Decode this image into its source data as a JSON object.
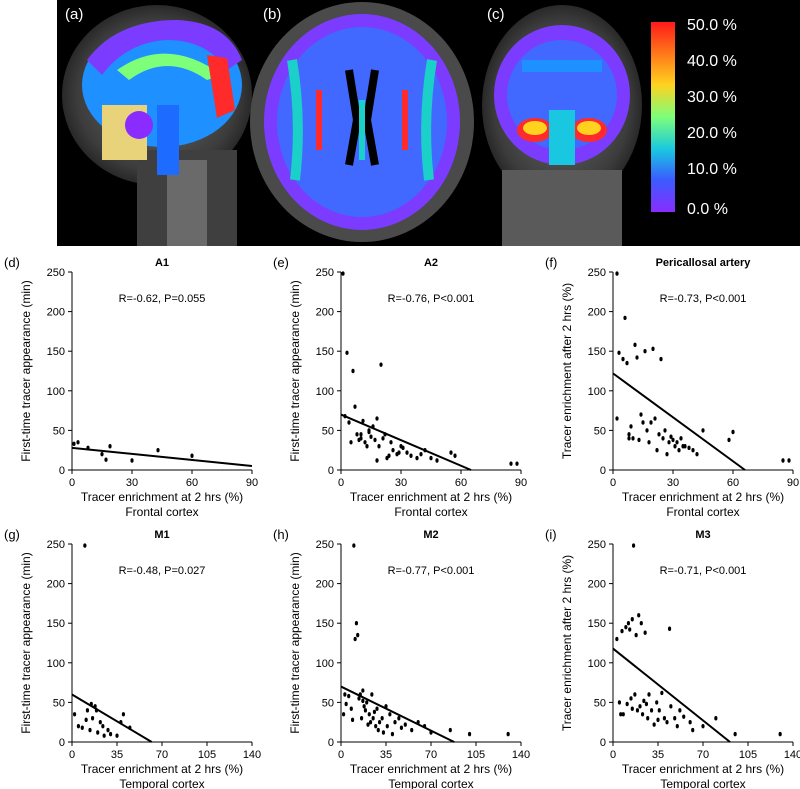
{
  "figure": {
    "mri_panels": [
      {
        "letter": "(a)"
      },
      {
        "letter": "(b)"
      },
      {
        "letter": "(c)"
      }
    ],
    "colorbar": {
      "ticks": [
        "50.0 %",
        "40.0 %",
        "30.0 %",
        "20.0 %",
        "10.0 %",
        "0.0 %"
      ],
      "colors": [
        "#ff1a1a",
        "#ff7a1a",
        "#ffd21f",
        "#7dff7a",
        "#19c8e0",
        "#3a5cff",
        "#8a2cff"
      ]
    }
  },
  "chart_data": [
    {
      "id": "d",
      "letter": "(d)",
      "type": "scatter",
      "title": "A1",
      "annotation": "R=-0.62, P=0.055",
      "ylabel": "First-time tracer appearance (min)",
      "xlabel": "Tracer enrichment at 2 hrs (%)",
      "xsublabel": "Frontal cortex",
      "xlim": [
        0,
        90
      ],
      "ylim": [
        0,
        250
      ],
      "xticks": [
        0,
        30,
        60,
        90
      ],
      "yticks": [
        0,
        50,
        100,
        150,
        200,
        250
      ],
      "x": [
        1,
        3,
        8,
        15,
        17,
        19,
        30,
        43,
        60
      ],
      "y": [
        33,
        35,
        28,
        20,
        13,
        30,
        12,
        25,
        18
      ],
      "fit": [
        [
          0,
          28
        ],
        [
          90,
          5
        ]
      ]
    },
    {
      "id": "e",
      "letter": "(e)",
      "type": "scatter",
      "title": "A2",
      "annotation": "R=-0.76, P<0.001",
      "ylabel": "First-time tracer appearance (min)",
      "xlabel": "Tracer enrichment at 2 hrs (%)",
      "xsublabel": "Frontal cortex",
      "xlim": [
        0,
        90
      ],
      "ylim": [
        0,
        250
      ],
      "xticks": [
        0,
        30,
        60,
        90
      ],
      "yticks": [
        0,
        50,
        100,
        150,
        200,
        250
      ],
      "x": [
        1,
        3,
        4,
        6,
        7,
        8,
        9,
        10,
        11,
        12,
        13,
        14,
        14,
        15,
        16,
        17,
        18,
        18,
        19,
        20,
        21,
        22,
        23,
        24,
        25,
        26,
        28,
        29,
        30,
        31,
        33,
        35,
        38,
        40,
        42,
        45,
        48,
        55,
        57,
        85,
        88,
        2,
        5,
        10
      ],
      "y": [
        248,
        148,
        60,
        125,
        80,
        45,
        38,
        40,
        62,
        35,
        30,
        50,
        48,
        42,
        55,
        38,
        12,
        65,
        30,
        133,
        40,
        45,
        15,
        18,
        35,
        25,
        20,
        22,
        30,
        28,
        22,
        18,
        15,
        20,
        25,
        15,
        12,
        22,
        18,
        8,
        8,
        68,
        35,
        45
      ],
      "fit": [
        [
          0,
          70
        ],
        [
          65,
          0
        ]
      ]
    },
    {
      "id": "f",
      "letter": "(f)",
      "type": "scatter",
      "title": "Pericallosal artery",
      "annotation": "R=-0.73, P<0.001",
      "ylabel": "Tracer enrichment after 2 hrs (%)",
      "xlabel": "Tracer enrichment at 2 hrs (%)",
      "xsublabel": "Frontal cortex",
      "xlim": [
        0,
        90
      ],
      "ylim": [
        0,
        250
      ],
      "xticks": [
        0,
        30,
        60,
        90
      ],
      "yticks": [
        0,
        50,
        100,
        150,
        200,
        250
      ],
      "x": [
        2,
        3,
        5,
        6,
        7,
        8,
        9,
        10,
        11,
        12,
        13,
        14,
        15,
        16,
        17,
        18,
        19,
        20,
        21,
        22,
        23,
        24,
        25,
        26,
        27,
        28,
        29,
        30,
        31,
        32,
        33,
        34,
        35,
        36,
        38,
        40,
        42,
        45,
        58,
        60,
        85,
        88,
        2,
        8
      ],
      "y": [
        248,
        148,
        140,
        192,
        135,
        45,
        55,
        40,
        158,
        142,
        38,
        70,
        60,
        150,
        50,
        35,
        60,
        153,
        65,
        25,
        45,
        140,
        40,
        50,
        20,
        35,
        42,
        38,
        30,
        35,
        25,
        40,
        30,
        30,
        28,
        25,
        20,
        50,
        38,
        48,
        12,
        12,
        65,
        40
      ],
      "fit": [
        [
          0,
          122
        ],
        [
          66,
          0
        ]
      ]
    },
    {
      "id": "g",
      "letter": "(g)",
      "type": "scatter",
      "title": "M1",
      "annotation": "R=-0.48, P=0.027",
      "ylabel": "First-time tracer appearance (min)",
      "xlabel": "Tracer enrichment at 2 hrs (%)",
      "xsublabel": "Temporal cortex",
      "xlim": [
        0,
        140
      ],
      "ylim": [
        0,
        250
      ],
      "xticks": [
        0,
        35,
        70,
        105,
        140
      ],
      "yticks": [
        0,
        50,
        100,
        150,
        200,
        250
      ],
      "x": [
        2,
        5,
        8,
        10,
        12,
        15,
        16,
        18,
        20,
        22,
        24,
        25,
        28,
        30,
        35,
        38,
        40,
        45,
        11,
        14,
        19
      ],
      "y": [
        35,
        20,
        18,
        248,
        40,
        48,
        30,
        45,
        12,
        25,
        20,
        8,
        15,
        10,
        8,
        25,
        35,
        18,
        28,
        15,
        40
      ],
      "fit": [
        [
          0,
          60
        ],
        [
          62,
          0
        ]
      ]
    },
    {
      "id": "h",
      "letter": "(h)",
      "type": "scatter",
      "title": "M2",
      "annotation": "R=-0.77, P<0.001",
      "ylabel": "First-time tracer appearance (min)",
      "xlabel": "Tracer enrichment at 2 hrs (%)",
      "xsublabel": "Temporal cortex",
      "xlim": [
        0,
        140
      ],
      "ylim": [
        0,
        250
      ],
      "xticks": [
        0,
        35,
        70,
        105,
        140
      ],
      "yticks": [
        0,
        50,
        100,
        150,
        200,
        250
      ],
      "x": [
        2,
        4,
        6,
        8,
        10,
        11,
        12,
        13,
        14,
        15,
        16,
        17,
        18,
        19,
        20,
        21,
        22,
        23,
        24,
        25,
        26,
        27,
        28,
        29,
        30,
        32,
        33,
        35,
        36,
        38,
        40,
        42,
        45,
        47,
        50,
        55,
        60,
        65,
        70,
        85,
        100,
        130,
        3,
        9,
        17
      ],
      "y": [
        35,
        48,
        58,
        42,
        248,
        130,
        150,
        135,
        55,
        60,
        30,
        65,
        45,
        40,
        50,
        22,
        35,
        25,
        60,
        30,
        38,
        20,
        42,
        15,
        25,
        30,
        12,
        45,
        20,
        35,
        10,
        25,
        30,
        18,
        22,
        15,
        25,
        20,
        12,
        15,
        10,
        10,
        60,
        28,
        52
      ],
      "fit": [
        [
          0,
          70
        ],
        [
          88,
          0
        ]
      ]
    },
    {
      "id": "i",
      "letter": "(i)",
      "type": "scatter",
      "title": "M3",
      "annotation": "R=-0.71, P<0.001",
      "ylabel": "Tracer enrichment after 2 hrs (%)",
      "xlabel": "Tracer enrichment at 2 hrs (%)",
      "xsublabel": "Temporal cortex",
      "xlim": [
        0,
        140
      ],
      "ylim": [
        0,
        250
      ],
      "xticks": [
        0,
        35,
        70,
        105,
        140
      ],
      "yticks": [
        0,
        50,
        100,
        150,
        200,
        250
      ],
      "x": [
        3,
        5,
        7,
        8,
        10,
        11,
        12,
        13,
        14,
        15,
        16,
        17,
        18,
        19,
        20,
        21,
        22,
        23,
        24,
        25,
        26,
        27,
        28,
        30,
        32,
        34,
        35,
        36,
        38,
        40,
        42,
        44,
        45,
        48,
        50,
        52,
        55,
        60,
        62,
        70,
        80,
        95,
        130,
        6,
        15
      ],
      "y": [
        130,
        50,
        140,
        35,
        145,
        48,
        150,
        142,
        55,
        155,
        248,
        60,
        135,
        40,
        160,
        45,
        150,
        35,
        52,
        138,
        48,
        30,
        60,
        40,
        22,
        50,
        28,
        40,
        62,
        30,
        25,
        143,
        45,
        30,
        20,
        40,
        32,
        25,
        15,
        20,
        30,
        10,
        10,
        35,
        42
      ],
      "fit": [
        [
          0,
          118
        ],
        [
          91,
          0
        ]
      ]
    }
  ]
}
